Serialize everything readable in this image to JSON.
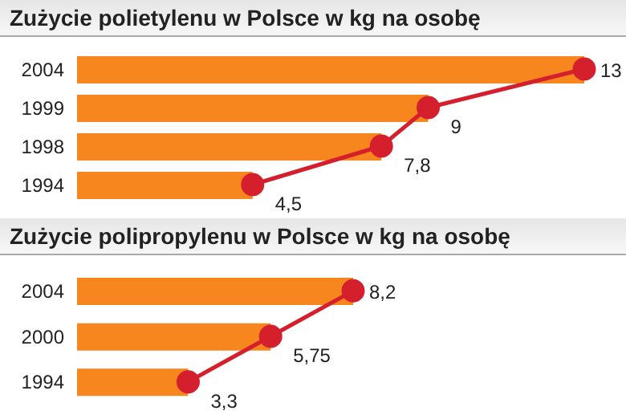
{
  "chart_data": [
    {
      "type": "bar",
      "title": "Zużycie polietylenu w Polsce w kg na osobę",
      "orientation": "horizontal",
      "categories": [
        "2004",
        "1999",
        "1998",
        "1994"
      ],
      "tick_labels": "y",
      "marker": "circle",
      "series": [
        {
          "type": "bar",
          "color": "#f7861f",
          "values": [
            13,
            9,
            7.8,
            4.5
          ]
        },
        {
          "type": "line",
          "color": "#d51f2c",
          "values": [
            13,
            9,
            7.8,
            4.5
          ],
          "value_labels": [
            "13",
            "9",
            "7,8",
            "4,5"
          ]
        }
      ]
    },
    {
      "type": "bar",
      "title": "Zużycie polipropylenu w Polsce w kg na osobę",
      "orientation": "horizontal",
      "categories": [
        "2004",
        "2000",
        "1994"
      ],
      "tick_labels": "y",
      "marker": "circle",
      "series": [
        {
          "type": "bar",
          "color": "#f7861f",
          "values": [
            8.2,
            5.75,
            3.3
          ]
        },
        {
          "type": "line",
          "color": "#d51f2c",
          "values": [
            8.2,
            5.75,
            3.3
          ],
          "value_labels": [
            "8,2",
            "5,75",
            "3,3"
          ]
        }
      ]
    }
  ]
}
